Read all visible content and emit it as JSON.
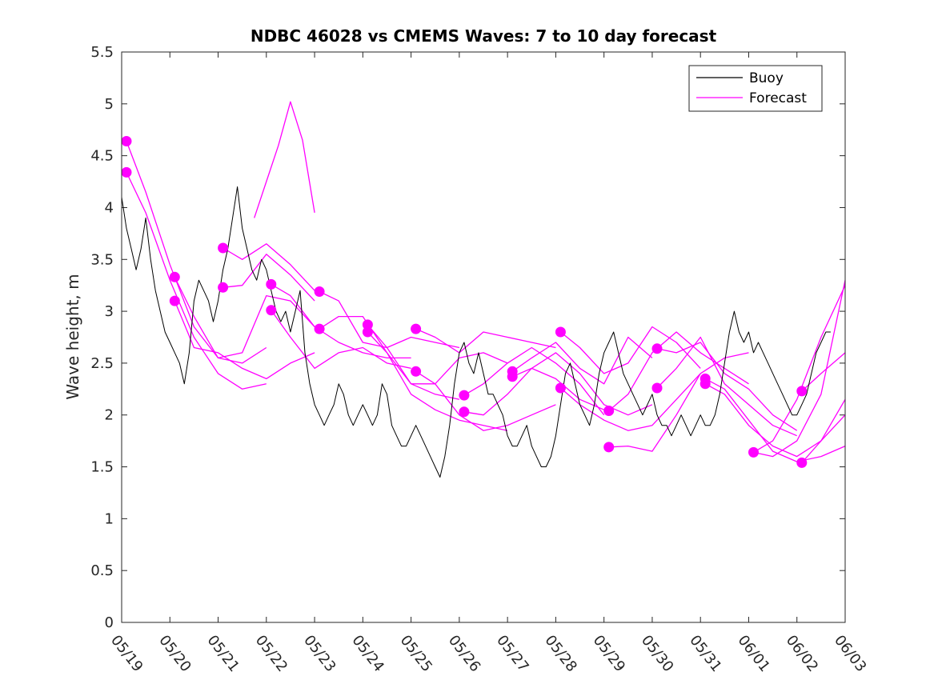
{
  "chart_data": {
    "type": "line",
    "title": "NDBC 46028 vs CMEMS Waves: 7 to 10 day forecast",
    "xlabel": "",
    "ylabel": "Wave height, m",
    "x_tick_labels": [
      "05/19",
      "05/20",
      "05/21",
      "05/22",
      "05/23",
      "05/24",
      "05/25",
      "05/26",
      "05/27",
      "05/28",
      "05/29",
      "05/30",
      "05/31",
      "06/01",
      "06/02",
      "06/03"
    ],
    "xlim": [
      0,
      15
    ],
    "ylim": [
      0,
      5.5
    ],
    "y_ticks": [
      0,
      0.5,
      1,
      1.5,
      2,
      2.5,
      3,
      3.5,
      4,
      4.5,
      5,
      5.5
    ],
    "y_tick_labels": [
      "0",
      "0.5",
      "1",
      "1.5",
      "2",
      "2.5",
      "3",
      "3.5",
      "4",
      "4.5",
      "5",
      "5.5"
    ],
    "x_units": "days since 05/19",
    "grid": false,
    "legend_position": "top-right",
    "colors": {
      "buoy": "#000000",
      "forecast": "#ff00ff"
    },
    "legend": [
      {
        "label": "Buoy",
        "color": "#000000"
      },
      {
        "label": "Forecast",
        "color": "#ff00ff"
      }
    ],
    "buoy": {
      "x": [
        0,
        0.1,
        0.2,
        0.3,
        0.4,
        0.5,
        0.6,
        0.7,
        0.8,
        0.9,
        1,
        1.1,
        1.2,
        1.3,
        1.4,
        1.5,
        1.6,
        1.7,
        1.8,
        1.9,
        2,
        2.1,
        2.2,
        2.3,
        2.4,
        2.5,
        2.6,
        2.7,
        2.8,
        2.9,
        3,
        3.1,
        3.2,
        3.3,
        3.4,
        3.5,
        3.6,
        3.7,
        3.8,
        3.9,
        4,
        4.1,
        4.2,
        4.3,
        4.4,
        4.5,
        4.6,
        4.7,
        4.8,
        4.9,
        5,
        5.1,
        5.2,
        5.3,
        5.4,
        5.5,
        5.6,
        5.7,
        5.8,
        5.9,
        6,
        6.1,
        6.2,
        6.3,
        6.4,
        6.5,
        6.6,
        6.7,
        6.8,
        6.9,
        7,
        7.1,
        7.2,
        7.3,
        7.4,
        7.5,
        7.6,
        7.7,
        7.8,
        7.9,
        8,
        8.1,
        8.2,
        8.3,
        8.4,
        8.5,
        8.6,
        8.7,
        8.8,
        8.9,
        9,
        9.1,
        9.2,
        9.3,
        9.4,
        9.5,
        9.6,
        9.7,
        9.8,
        9.9,
        10,
        10.1,
        10.2,
        10.3,
        10.4,
        10.5,
        10.6,
        10.7,
        10.8,
        10.9,
        11,
        11.1,
        11.2,
        11.3,
        11.4,
        11.5,
        11.6,
        11.7,
        11.8,
        11.9,
        12,
        12.1,
        12.2,
        12.3,
        12.4,
        12.5,
        12.6,
        12.7,
        12.8,
        12.9,
        13,
        13.1,
        13.2,
        13.3,
        13.4,
        13.5,
        13.6,
        13.7,
        13.8,
        13.9,
        14,
        14.1,
        14.2,
        14.3,
        14.4,
        14.5,
        14.6,
        14.7
      ],
      "y": [
        4.1,
        3.8,
        3.6,
        3.4,
        3.6,
        3.9,
        3.5,
        3.2,
        3.0,
        2.8,
        2.7,
        2.6,
        2.5,
        2.3,
        2.6,
        3.1,
        3.3,
        3.2,
        3.1,
        2.9,
        3.1,
        3.4,
        3.6,
        3.9,
        4.2,
        3.8,
        3.6,
        3.4,
        3.3,
        3.5,
        3.4,
        3.2,
        3.0,
        2.9,
        3.0,
        2.8,
        3.0,
        3.2,
        2.6,
        2.3,
        2.1,
        2.0,
        1.9,
        2.0,
        2.1,
        2.3,
        2.2,
        2.0,
        1.9,
        2.0,
        2.1,
        2.0,
        1.9,
        2.0,
        2.3,
        2.2,
        1.9,
        1.8,
        1.7,
        1.7,
        1.8,
        1.9,
        1.8,
        1.7,
        1.6,
        1.5,
        1.4,
        1.6,
        1.9,
        2.3,
        2.6,
        2.7,
        2.5,
        2.4,
        2.6,
        2.4,
        2.2,
        2.2,
        2.1,
        2.0,
        1.8,
        1.7,
        1.7,
        1.8,
        1.9,
        1.7,
        1.6,
        1.5,
        1.5,
        1.6,
        1.8,
        2.1,
        2.4,
        2.5,
        2.3,
        2.1,
        2.0,
        1.9,
        2.1,
        2.4,
        2.6,
        2.7,
        2.8,
        2.6,
        2.4,
        2.3,
        2.2,
        2.1,
        2.0,
        2.1,
        2.2,
        2.0,
        1.9,
        1.9,
        1.8,
        1.9,
        2.0,
        1.9,
        1.8,
        1.9,
        2.0,
        1.9,
        1.9,
        2.0,
        2.2,
        2.5,
        2.8,
        3.0,
        2.8,
        2.7,
        2.8,
        2.6,
        2.7,
        2.6,
        2.5,
        2.4,
        2.3,
        2.2,
        2.1,
        2.0,
        2.0,
        2.1,
        2.2,
        2.4,
        2.6,
        2.7,
        2.8,
        2.8
      ]
    },
    "forecast_series": [
      {
        "x": [
          0.1,
          0.5,
          1.0,
          1.5,
          2.0,
          2.5,
          3.0
        ],
        "y": [
          4.64,
          4.15,
          3.45,
          2.85,
          2.55,
          2.5,
          2.65
        ]
      },
      {
        "x": [
          0.1,
          0.5,
          1.0,
          1.5,
          2.0,
          2.5,
          3.0
        ],
        "y": [
          4.34,
          3.95,
          3.3,
          2.75,
          2.4,
          2.25,
          2.3
        ]
      },
      {
        "x": [
          1.1,
          1.5,
          2.0,
          2.5,
          3.0,
          3.5,
          4.0
        ],
        "y": [
          3.33,
          2.95,
          2.55,
          2.6,
          3.15,
          3.1,
          2.85
        ]
      },
      {
        "x": [
          1.1,
          1.5,
          2.0,
          2.5,
          3.0,
          3.5,
          4.0
        ],
        "y": [
          3.1,
          2.65,
          2.6,
          2.45,
          2.35,
          2.5,
          2.6
        ]
      },
      {
        "x": [
          2.1,
          2.5,
          3.0,
          3.5,
          4.0
        ],
        "y": [
          3.61,
          3.5,
          3.65,
          3.45,
          3.2
        ]
      },
      {
        "x": [
          2.1,
          2.5,
          3.0,
          3.5,
          4.0
        ],
        "y": [
          3.23,
          3.25,
          3.55,
          3.35,
          3.1
        ]
      },
      {
        "x": [
          2.75,
          3.0,
          3.25,
          3.5,
          3.75,
          4.0
        ],
        "y": [
          3.9,
          4.25,
          4.6,
          5.02,
          4.65,
          3.95
        ]
      },
      {
        "x": [
          3.1,
          3.5,
          4.0,
          4.5,
          5.0,
          5.5,
          6.0
        ],
        "y": [
          3.26,
          3.15,
          2.85,
          2.7,
          2.6,
          2.55,
          2.55
        ]
      },
      {
        "x": [
          3.1,
          3.5,
          4.0,
          4.5,
          5.0,
          5.5,
          6.0
        ],
        "y": [
          3.01,
          2.75,
          2.45,
          2.6,
          2.65,
          2.5,
          2.45
        ]
      },
      {
        "x": [
          4.1,
          4.5,
          5.0,
          5.5,
          6.0,
          6.5,
          7.0
        ],
        "y": [
          3.19,
          3.1,
          2.7,
          2.65,
          2.75,
          2.7,
          2.65
        ]
      },
      {
        "x": [
          4.1,
          4.5,
          5.0,
          5.5,
          6.0,
          6.5,
          7.0
        ],
        "y": [
          2.83,
          2.95,
          2.95,
          2.6,
          2.3,
          2.2,
          2.15
        ]
      },
      {
        "x": [
          5.1,
          5.5,
          6.0,
          6.5,
          7.0,
          7.5,
          8.0
        ],
        "y": [
          2.87,
          2.65,
          2.3,
          2.3,
          2.55,
          2.6,
          2.5
        ]
      },
      {
        "x": [
          5.1,
          5.5,
          6.0,
          6.5,
          7.0,
          7.5,
          8.0
        ],
        "y": [
          2.8,
          2.6,
          2.2,
          2.05,
          1.95,
          1.9,
          1.85
        ]
      },
      {
        "x": [
          6.1,
          6.5,
          7.0,
          7.5,
          8.0,
          8.5,
          9.0
        ],
        "y": [
          2.83,
          2.75,
          2.6,
          2.8,
          2.75,
          2.7,
          2.65
        ]
      },
      {
        "x": [
          6.1,
          6.5,
          7.0,
          7.5,
          8.0,
          8.5,
          9.0
        ],
        "y": [
          2.42,
          2.3,
          2.0,
          1.85,
          1.9,
          2.0,
          2.1
        ]
      },
      {
        "x": [
          7.1,
          7.5,
          8.0,
          8.5,
          9.0,
          9.5,
          10.0
        ],
        "y": [
          2.19,
          2.3,
          2.5,
          2.65,
          2.5,
          2.3,
          2.0
        ]
      },
      {
        "x": [
          7.1,
          7.5,
          8.0,
          8.5,
          9.0,
          9.5,
          10.0
        ],
        "y": [
          2.03,
          2.0,
          2.2,
          2.45,
          2.35,
          2.15,
          2.05
        ]
      },
      {
        "x": [
          8.1,
          8.5,
          9.0,
          9.5,
          10.0,
          10.5,
          11.0
        ],
        "y": [
          2.42,
          2.55,
          2.7,
          2.45,
          2.3,
          2.75,
          2.55
        ]
      },
      {
        "x": [
          8.1,
          8.5,
          9.0,
          9.5,
          10.0,
          10.5,
          11.0
        ],
        "y": [
          2.37,
          2.45,
          2.6,
          2.4,
          2.1,
          2.0,
          2.1
        ]
      },
      {
        "x": [
          9.1,
          9.5,
          10.0,
          10.5,
          11.0,
          11.5,
          12.0
        ],
        "y": [
          2.8,
          2.65,
          2.4,
          2.5,
          2.85,
          2.7,
          2.45
        ]
      },
      {
        "x": [
          9.1,
          9.5,
          10.0,
          10.5,
          11.0,
          11.5,
          12.0
        ],
        "y": [
          2.26,
          2.1,
          1.95,
          1.85,
          1.9,
          2.15,
          2.4
        ]
      },
      {
        "x": [
          10.1,
          10.5,
          11.0,
          11.5,
          12.0,
          12.5,
          13.0
        ],
        "y": [
          2.04,
          2.2,
          2.6,
          2.8,
          2.6,
          2.45,
          2.3
        ]
      },
      {
        "x": [
          10.1,
          10.5,
          11.0,
          11.5,
          12.0,
          12.5,
          13.0
        ],
        "y": [
          1.69,
          1.7,
          1.65,
          2.0,
          2.4,
          2.55,
          2.6
        ]
      },
      {
        "x": [
          11.1,
          11.5,
          12.0,
          12.5,
          13.0,
          13.5,
          14.0
        ],
        "y": [
          2.64,
          2.6,
          2.7,
          2.4,
          2.25,
          2.0,
          1.85
        ]
      },
      {
        "x": [
          11.1,
          11.5,
          12.0,
          12.5,
          13.0,
          13.5,
          14.0
        ],
        "y": [
          2.26,
          2.45,
          2.75,
          2.3,
          2.1,
          1.9,
          1.8
        ]
      },
      {
        "x": [
          12.1,
          12.5,
          13.0,
          13.5,
          14.0,
          14.5,
          15.0
        ],
        "y": [
          2.35,
          2.25,
          1.95,
          1.65,
          1.55,
          1.6,
          1.7
        ]
      },
      {
        "x": [
          12.1,
          12.5,
          13.0,
          13.5,
          14.0,
          14.5,
          15.0
        ],
        "y": [
          2.3,
          2.2,
          1.9,
          1.7,
          1.6,
          1.75,
          2.0
        ]
      },
      {
        "x": [
          13.1,
          13.5,
          14.0,
          14.5,
          15.0
        ],
        "y": [
          1.64,
          1.6,
          1.75,
          2.2,
          3.3
        ]
      },
      {
        "x": [
          13.1,
          13.5,
          14.0,
          14.5,
          15.0
        ],
        "y": [
          1.64,
          1.75,
          2.15,
          2.75,
          3.25
        ]
      },
      {
        "x": [
          14.1,
          14.5,
          15.0
        ],
        "y": [
          2.23,
          2.4,
          2.6
        ]
      },
      {
        "x": [
          14.1,
          14.5,
          15.0
        ],
        "y": [
          1.54,
          1.75,
          2.15
        ]
      }
    ],
    "forecast_markers": {
      "x": [
        0.1,
        0.1,
        1.1,
        1.1,
        2.1,
        2.1,
        3.1,
        3.1,
        4.1,
        4.1,
        5.1,
        5.1,
        6.1,
        6.1,
        7.1,
        7.1,
        8.1,
        8.1,
        9.1,
        9.1,
        10.1,
        10.1,
        11.1,
        11.1,
        12.1,
        12.1,
        13.1,
        14.1,
        14.1
      ],
      "y": [
        4.64,
        4.34,
        3.33,
        3.1,
        3.61,
        3.23,
        3.26,
        3.01,
        3.19,
        2.83,
        2.87,
        2.8,
        2.83,
        2.42,
        2.19,
        2.03,
        2.42,
        2.37,
        2.8,
        2.26,
        2.04,
        1.69,
        2.64,
        2.26,
        2.35,
        2.3,
        1.64,
        2.23,
        1.54
      ]
    }
  }
}
